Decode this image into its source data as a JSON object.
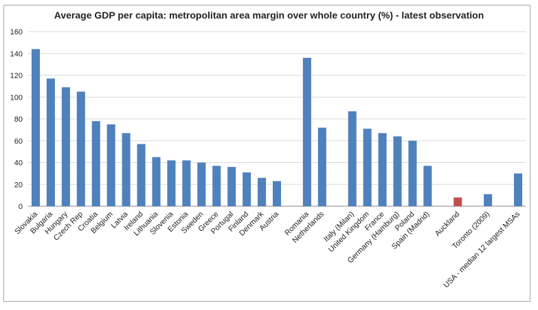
{
  "chart_data": {
    "type": "bar",
    "title": "Average GDP per capita: metropolitan area margin over whole country (%) -  latest observation",
    "xlabel": "",
    "ylabel": "",
    "ylim": [
      0,
      160
    ],
    "yticks": [
      0,
      20,
      40,
      60,
      80,
      100,
      120,
      140,
      160
    ],
    "grid": true,
    "legend": "none",
    "colors": {
      "default": "#4f81bd",
      "highlight": "#c0504d"
    },
    "categories": [
      "Slovakia",
      "Bulgaria",
      "Hungary",
      "Czech Rep",
      "Croatia",
      "Belgium",
      "Latvia",
      "Ireland",
      "Lithuania",
      "Slovenia",
      "Estonia",
      "Sweden",
      "Greece",
      "Portugal",
      "Finland",
      "Denmark",
      "Austria",
      "",
      "Romania",
      "Netherlands",
      "",
      "Italy (Milan)",
      "United Kingdom",
      "France",
      "Germany (Hamburg)",
      "Poland",
      "Spain (Madrid)",
      "",
      "Auckland",
      "",
      "Toronto (2009)",
      "",
      "USA -  median 12 largest MSAs"
    ],
    "values": [
      144,
      117,
      109,
      105,
      78,
      75,
      67,
      57,
      45,
      42,
      42,
      40,
      37,
      36,
      31,
      26,
      23,
      null,
      136,
      72,
      null,
      87,
      71,
      67,
      64,
      60,
      37,
      null,
      8,
      null,
      11,
      null,
      30
    ],
    "highlighted": [
      "Auckland"
    ]
  }
}
